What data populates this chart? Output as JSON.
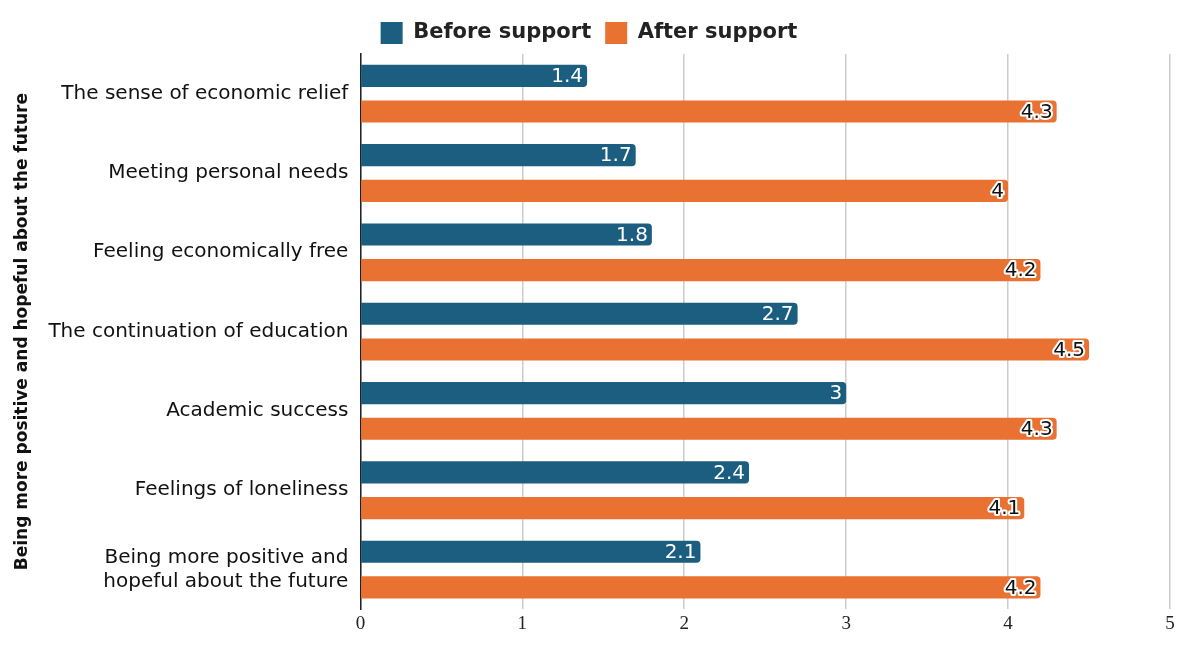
{
  "chart_data": {
    "type": "bar",
    "orientation": "horizontal",
    "ylabel": "Being more positive and hopeful about the future",
    "categories": [
      "The sense of economic relief",
      "Meeting personal needs",
      "Feeling economically free",
      "The continuation of education",
      "Academic success",
      "Feelings of loneliness",
      "Being more positive and\nhopeful about the future"
    ],
    "series": [
      {
        "name": "Before support",
        "color": "#1b5e80",
        "values": [
          1.4,
          1.7,
          1.8,
          2.7,
          3,
          2.4,
          2.1
        ]
      },
      {
        "name": "After support",
        "color": "#e97132",
        "values": [
          4.3,
          4,
          4.2,
          4.5,
          4.3,
          4.1,
          4.2
        ]
      }
    ],
    "xlim": [
      0,
      5
    ],
    "xticks": [
      0,
      1,
      2,
      3,
      4,
      5
    ],
    "grid": "x",
    "legend": "top",
    "data_labels": true
  }
}
